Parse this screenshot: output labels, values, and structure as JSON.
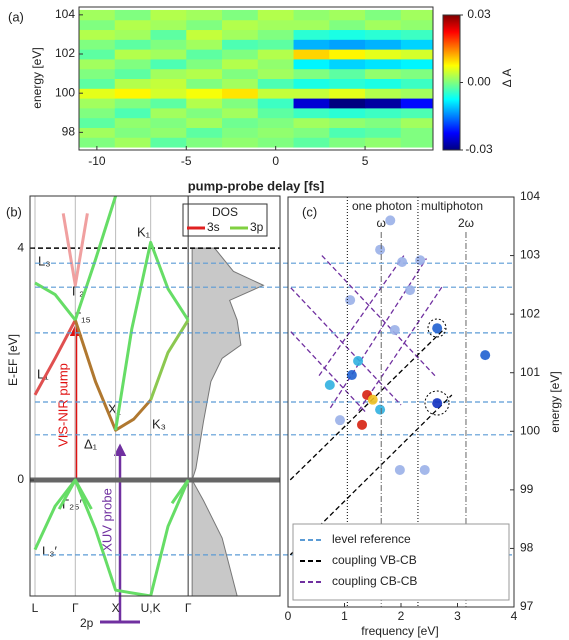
{
  "chart_data": [
    {
      "type": "heatmap",
      "panel": "(a)",
      "xlabel": "pump-probe delay [fs]",
      "ylabel": "energy [eV]",
      "colorbar_label": "Δ A",
      "colormap": "jet",
      "xlim": [
        -11,
        8.8
      ],
      "ylim": [
        97.1,
        104.4
      ],
      "xticks": [
        -10,
        -5,
        0,
        5
      ],
      "yticks": [
        98,
        100,
        102,
        104
      ],
      "clim": [
        -0.03,
        0.03
      ],
      "cticks": [
        {
          "value": 0.03,
          "label": "0.03"
        },
        {
          "value": 0,
          "label": "0.00"
        },
        {
          "value": -0.03,
          "label": "-0.03"
        }
      ],
      "x": [
        -10,
        -8,
        -6,
        -4,
        -2,
        0,
        2,
        4,
        6,
        8
      ],
      "y": [
        97.5,
        98,
        98.5,
        99,
        99.5,
        100,
        100.5,
        101,
        101.5,
        102,
        102.5,
        103,
        103.5,
        104
      ],
      "z": [
        [
          0,
          0.002,
          -0.002,
          0,
          0.001,
          0,
          -0.002,
          0,
          0.001,
          0
        ],
        [
          0.002,
          0,
          0.001,
          -0.002,
          0,
          0.001,
          0,
          -0.003,
          -0.002,
          0
        ],
        [
          -0.002,
          0.001,
          0,
          0.002,
          -0.001,
          0,
          0.002,
          0.001,
          0,
          0.002
        ],
        [
          0,
          -0.003,
          0.002,
          0,
          0.002,
          -0.002,
          -0.004,
          -0.005,
          -0.004,
          -0.003
        ],
        [
          0.002,
          0,
          -0.002,
          0.003,
          0,
          -0.004,
          -0.025,
          -0.03,
          -0.028,
          -0.022
        ],
        [
          0.006,
          0.008,
          0.005,
          0.007,
          0.009,
          0.004,
          0.004,
          0.006,
          0.003,
          0.002
        ],
        [
          -0.002,
          0.003,
          0.004,
          0,
          0.002,
          -0.003,
          -0.006,
          -0.005,
          -0.006,
          -0.004
        ],
        [
          0,
          -0.002,
          0.002,
          0.003,
          0,
          0.002,
          0,
          -0.002,
          0.001,
          0
        ],
        [
          0.002,
          0,
          -0.003,
          0,
          0.003,
          0.001,
          -0.008,
          -0.01,
          -0.009,
          -0.008
        ],
        [
          -0.002,
          0.003,
          0.002,
          -0.002,
          0,
          0.003,
          0.01,
          0.008,
          0.006,
          0.005
        ],
        [
          0,
          -0.002,
          0,
          0.002,
          -0.003,
          -0.002,
          -0.012,
          -0.013,
          -0.012,
          -0.01
        ],
        [
          0.003,
          0.002,
          -0.002,
          0.004,
          0.002,
          0,
          -0.005,
          -0.006,
          -0.005,
          -0.004
        ],
        [
          0,
          0.003,
          0.002,
          0,
          0.003,
          0.002,
          0.002,
          0,
          0.002,
          0.001
        ],
        [
          0.002,
          0,
          0.003,
          0.002,
          0,
          0.003,
          0.001,
          0.002,
          0,
          0.002
        ]
      ]
    },
    {
      "type": "band",
      "panel": "(b)",
      "ylabel": "E-EF [eV]",
      "categories": [
        "L",
        "Γ",
        "X",
        "U,K",
        "Γ"
      ],
      "category_k": [
        0,
        1,
        2,
        2.87,
        3.8
      ],
      "ylim": [
        -2.0,
        4.9
      ],
      "yticks": [
        4,
        0
      ],
      "fermi_line": 0,
      "reference_line": 4,
      "series": [
        {
          "color": "#e05050",
          "x": [
            0,
            0.5,
            1
          ],
          "values": [
            1.47,
            2.1,
            2.76
          ]
        },
        {
          "color": "#b07830",
          "x": [
            1,
            1.5,
            2,
            2.45,
            2.87
          ],
          "values": [
            2.76,
            1.7,
            0.86,
            1.05,
            1.38
          ]
        },
        {
          "color": "#8cc850",
          "x": [
            2.87,
            3.3,
            3.8
          ],
          "values": [
            1.38,
            2.2,
            2.76
          ]
        },
        {
          "color": "#66dd66",
          "x": [
            0,
            0.5,
            1,
            1.5,
            2,
            2.87,
            3.3,
            3.8
          ],
          "values": [
            -1.2,
            -0.45,
            0,
            -0.85,
            -1.9,
            -2.0,
            -0.8,
            0
          ]
        },
        {
          "color": "#66dd66",
          "x": [
            0,
            0.5,
            1
          ],
          "values": [
            3.4,
            3.2,
            2.76
          ]
        },
        {
          "color": "#66dd66",
          "x": [
            1,
            1.5,
            2
          ],
          "values": [
            2.76,
            3.8,
            4.9
          ]
        },
        {
          "color": "#66dd66",
          "x": [
            2,
            2.4,
            2.87,
            3.3,
            3.8
          ],
          "values": [
            0.86,
            2.6,
            4.1,
            3.3,
            2.76
          ]
        },
        {
          "color": "#f0a0a0",
          "x": [
            0.7,
            1,
            1.3
          ],
          "values": [
            4.6,
            3.36,
            4.6
          ]
        },
        {
          "color": "#66dd66",
          "x": [
            0.6,
            1,
            1.4
          ],
          "values": [
            -0.5,
            0,
            -0.5
          ]
        },
        {
          "color": "#66dd66",
          "x": [
            3.4,
            3.8
          ],
          "values": [
            -0.4,
            0
          ]
        }
      ],
      "dos": {
        "title": "DOS",
        "energies": [
          4.0,
          3.6,
          3.36,
          3.1,
          2.76,
          2.33,
          2.1,
          1.7,
          1.0,
          0.2,
          0,
          -0.35,
          -1.0,
          -1.5,
          -2.0
        ],
        "values": [
          0.3,
          0.55,
          0.95,
          0.5,
          0.6,
          0.65,
          0.4,
          0.25,
          0.15,
          0.05,
          0,
          0.15,
          0.4,
          0.5,
          0.6
        ],
        "legend": [
          {
            "name": "3s",
            "color": "#e02020"
          },
          {
            "name": "3p",
            "color": "#80d040"
          }
        ]
      },
      "annotations": [
        "L₃",
        "Γ₂′",
        "Γ₁₅",
        "L₁",
        "X₁",
        "K₃",
        "Δ₁",
        "Γ₂₅′",
        "L₃′",
        "K₁"
      ],
      "pump_label": "VIS-NIR pump",
      "probe_label": "XUV probe",
      "core_label": "2p"
    },
    {
      "type": "scatter",
      "panel": "(c)",
      "xlabel": "frequency [eV]",
      "ylabel": "energy [eV]",
      "xlim": [
        0,
        4
      ],
      "ylim": [
        97,
        104
      ],
      "xticks": [
        0,
        1,
        2,
        3,
        4
      ],
      "yticks": [
        97,
        98,
        99,
        100,
        101,
        102,
        103,
        104
      ],
      "x": [
        1.4,
        1.5,
        1.31,
        1.13,
        1.63,
        2.64,
        2.64,
        2.16,
        2.02,
        1.63,
        2.34,
        3.49,
        1.89,
        1.24,
        0.92,
        1.98,
        1.1,
        2.42,
        1.81,
        0.74
      ],
      "y": [
        100.62,
        100.54,
        100.11,
        100.96,
        100.37,
        100.48,
        101.76,
        102.41,
        102.89,
        103.1,
        102.92,
        101.3,
        101.73,
        101.2,
        100.19,
        99.34,
        102.24,
        99.34,
        103.6,
        100.79
      ],
      "colors": [
        "#d62010",
        "#f0c020",
        "#d62010",
        "#2060d0",
        "#30b0e0",
        "#1030c0",
        "#2060d0",
        "#9ab0e8",
        "#9ab0e8",
        "#9ab0e8",
        "#9ab0e8",
        "#2060d0",
        "#9ab0e8",
        "#30b0e0",
        "#9ab0e8",
        "#9ab0e8",
        "#9ab0e8",
        "#9ab0e8",
        "#9ab0e8",
        "#30b0e0"
      ],
      "region_lines": [
        1.05,
        2.3
      ],
      "region_labels": [
        "one photon",
        "multiphoton"
      ],
      "harmonic_lines": [
        1.65,
        3.15
      ],
      "harmonic_labels": [
        "ω",
        "2ω"
      ],
      "levels": {
        "name": "level reference",
        "color": "#5b9bd5",
        "values": [
          102.87,
          102.46,
          101.68,
          100.5,
          99.94,
          97.89
        ]
      },
      "couplings": [
        {
          "name": "coupling VB-CB",
          "color": "#000000",
          "lines": [
            {
              "x": [
                0.04,
                2.9
              ],
              "values": [
                97.89,
                100.62
              ]
            },
            {
              "x": [
                0.04,
                2.78
              ],
              "values": [
                99.17,
                101.76
              ]
            }
          ]
        },
        {
          "name": "coupling CB-CB",
          "color": "#7030a0",
          "lines": [
            {
              "x": [
                0.05,
                2.0
              ],
              "values": [
                102.45,
                100.45
              ]
            },
            {
              "x": [
                0.6,
                2.6
              ],
              "values": [
                103.0,
                100.95
              ]
            },
            {
              "x": [
                0.05,
                1.4
              ],
              "values": [
                101.7,
                100.3
              ]
            },
            {
              "x": [
                0.75,
                2.45
              ],
              "values": [
                100.4,
                102.95
              ]
            },
            {
              "x": [
                1.25,
                2.75
              ],
              "values": [
                100.35,
                102.5
              ]
            },
            {
              "x": [
                0.55,
                2.05
              ],
              "values": [
                100.95,
                103.0
              ]
            }
          ]
        }
      ]
    }
  ]
}
